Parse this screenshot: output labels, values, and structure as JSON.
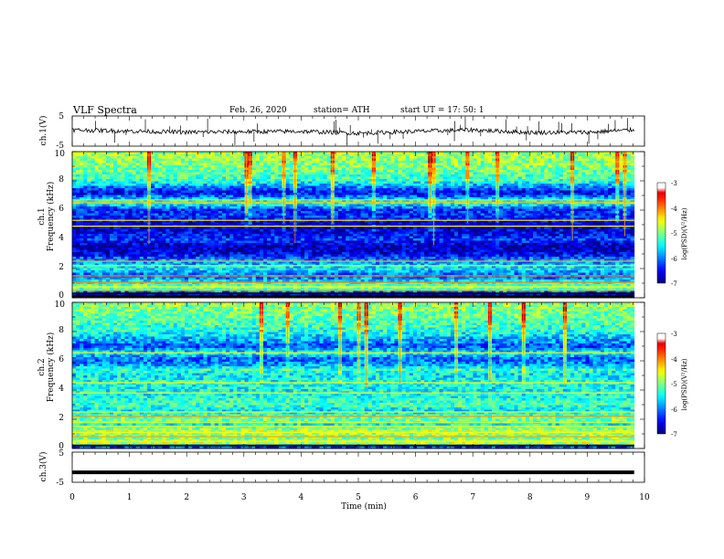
{
  "header": {
    "title": "VLF  Spectra",
    "date": "Feb. 26, 2020",
    "station": "station= ATH",
    "start": "start  UT  =   17: 50: 1"
  },
  "chart_data": [
    {
      "type": "line",
      "ylabel": "ch.1(V)",
      "ylim": [
        -5,
        5
      ],
      "yticks": [
        "5",
        "-5"
      ],
      "xlim": [
        0,
        10
      ],
      "baseline": 0.3,
      "envelope": [
        [
          0,
          0.4
        ],
        [
          1,
          0.0
        ],
        [
          2,
          -0.4
        ],
        [
          3,
          -0.2
        ],
        [
          4,
          -0.1
        ],
        [
          5,
          -0.7
        ],
        [
          6,
          -0.1
        ],
        [
          7,
          0.4
        ],
        [
          8,
          -0.5
        ],
        [
          9,
          -0.4
        ],
        [
          9.82,
          0.4
        ]
      ]
    },
    {
      "type": "heatmap",
      "ylabel": "ch.1\nFrequency (kHz)",
      "ylim": [
        0,
        10
      ],
      "yticks": [
        "0",
        "2",
        "4",
        "6",
        "8",
        "10"
      ],
      "xlim": [
        0,
        10
      ],
      "data_end_min": 9.82,
      "colorbar": {
        "label": "log(PSD)(V²/Hz)",
        "range": [
          -7,
          -3
        ],
        "ticks": [
          "-3",
          "-4",
          "-5",
          "-6",
          "-7"
        ]
      },
      "profile": [
        [
          0.0,
          -7.0
        ],
        [
          0.3,
          -6.5
        ],
        [
          0.6,
          -5.0
        ],
        [
          1.0,
          -5.3
        ],
        [
          1.5,
          -6.2
        ],
        [
          2.0,
          -5.5
        ],
        [
          2.3,
          -5.8
        ],
        [
          2.6,
          -6.0
        ],
        [
          3.0,
          -6.6
        ],
        [
          3.5,
          -6.8
        ],
        [
          4.0,
          -6.3
        ],
        [
          4.5,
          -6.6
        ],
        [
          5.0,
          -6.8
        ],
        [
          5.6,
          -6.3
        ],
        [
          6.0,
          -6.4
        ],
        [
          6.5,
          -5.3
        ],
        [
          6.8,
          -5.8
        ],
        [
          7.2,
          -6.6
        ],
        [
          8.0,
          -5.3
        ],
        [
          9.0,
          -5.0
        ],
        [
          10.0,
          -4.8
        ]
      ],
      "lines_khz": [
        0.1,
        0.3,
        0.55,
        0.75,
        1.05,
        1.5,
        2.2,
        2.5,
        4.9,
        5.3,
        6.55,
        6.7
      ]
    },
    {
      "type": "heatmap",
      "ylabel": "ch.2\nFrequency (kHz)",
      "ylim": [
        0,
        10
      ],
      "yticks": [
        "0",
        "2",
        "4",
        "6",
        "8",
        "10"
      ],
      "xlim": [
        0,
        10
      ],
      "data_end_min": 9.82,
      "colorbar": {
        "label": "log(PSD)(V²/Hz)",
        "range": [
          -7,
          -3
        ],
        "ticks": [
          "-3",
          "-4",
          "-5",
          "-6",
          "-7"
        ]
      },
      "profile": [
        [
          0.0,
          -6.8
        ],
        [
          0.3,
          -4.6
        ],
        [
          0.8,
          -5.1
        ],
        [
          1.2,
          -4.7
        ],
        [
          1.6,
          -5.5
        ],
        [
          2.0,
          -5.0
        ],
        [
          2.6,
          -5.6
        ],
        [
          3.0,
          -5.2
        ],
        [
          3.8,
          -5.5
        ],
        [
          4.5,
          -5.4
        ],
        [
          5.0,
          -5.6
        ],
        [
          5.4,
          -5.3
        ],
        [
          5.8,
          -6.0
        ],
        [
          6.2,
          -6.1
        ],
        [
          6.5,
          -5.5
        ],
        [
          7.0,
          -6.2
        ],
        [
          8.0,
          -5.4
        ],
        [
          9.0,
          -5.1
        ],
        [
          10.0,
          -4.9
        ]
      ],
      "lines_khz": [
        0.2,
        0.5,
        0.8,
        1.1,
        1.5,
        1.8,
        2.2,
        2.5,
        3.8,
        4.5,
        6.55
      ]
    },
    {
      "type": "line",
      "ylabel": "ch.3(V)",
      "ylim": [
        -5,
        5
      ],
      "yticks": [
        "5",
        "-5"
      ],
      "xlim": [
        0,
        10
      ],
      "baseline": -1.7,
      "envelope": [
        [
          0,
          -1.7
        ],
        [
          9.82,
          -1.7
        ]
      ]
    }
  ],
  "xaxis": {
    "label": "Time  (min)",
    "range": [
      0,
      10
    ],
    "ticks": [
      "0",
      "1",
      "2",
      "3",
      "4",
      "5",
      "6",
      "7",
      "8",
      "9",
      "10"
    ]
  }
}
